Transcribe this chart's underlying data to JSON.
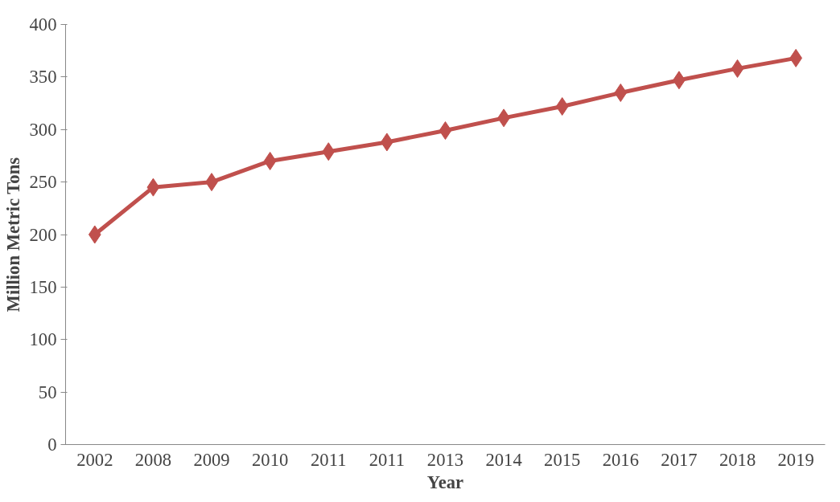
{
  "chart_data": {
    "type": "line",
    "xlabel": "Year",
    "ylabel": "Million Metric Tons",
    "categories": [
      "2002",
      "2008",
      "2009",
      "2010",
      "2011",
      "2011",
      "2013",
      "2014",
      "2015",
      "2016",
      "2017",
      "2018",
      "2019"
    ],
    "series": [
      {
        "color": "#c0504d",
        "values": [
          200,
          245,
          250,
          270,
          279,
          288,
          299,
          311,
          322,
          335,
          347,
          358,
          368
        ]
      }
    ],
    "ylim": [
      0,
      400
    ],
    "yticks": [
      0,
      50,
      100,
      150,
      200,
      250,
      300,
      350,
      400
    ],
    "grid": false,
    "marker": "diamond",
    "line_style": "solid"
  }
}
